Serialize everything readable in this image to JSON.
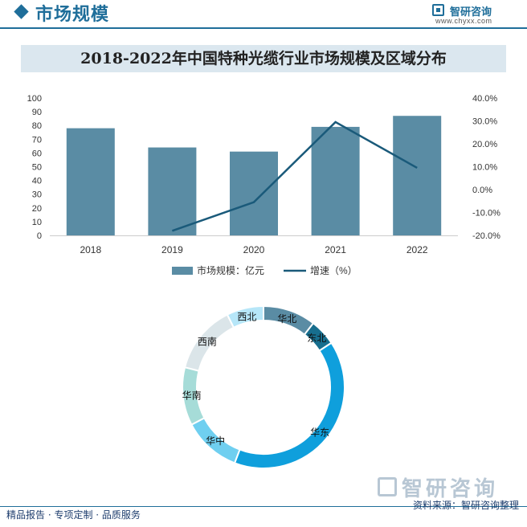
{
  "header": {
    "title": "市场规模",
    "brand_name": "智研咨询",
    "brand_url": "www.chyxx.com"
  },
  "colors": {
    "primary": "#1f6e9a",
    "bar": "#5a8ca4",
    "line": "#1a5a7a"
  },
  "chart_data": [
    {
      "type": "bar",
      "title": "2018-2022年中国特种光缆行业市场规模及区域分布",
      "categories": [
        "2018",
        "2019",
        "2020",
        "2021",
        "2022"
      ],
      "series": [
        {
          "name": "市场规模：亿元",
          "type": "bar",
          "axis": "left",
          "values": [
            78,
            64,
            61,
            79,
            87
          ]
        },
        {
          "name": "增速（%）",
          "type": "line",
          "axis": "right",
          "values": [
            null,
            -18,
            -5.5,
            29.5,
            9.5
          ]
        }
      ],
      "y_left": {
        "min": 0,
        "max": 100,
        "ticks": [
          "0",
          "10",
          "20",
          "30",
          "40",
          "50",
          "60",
          "70",
          "80",
          "90",
          "100"
        ]
      },
      "y_right": {
        "min": -20,
        "max": 40,
        "ticks": [
          "-20.0%",
          "-10.0%",
          "0.0%",
          "10.0%",
          "20.0%",
          "30.0%",
          "40.0%"
        ]
      },
      "legend": [
        "市场规模：亿元",
        "增速（%）"
      ]
    },
    {
      "type": "pie",
      "subtype": "donut",
      "slices": [
        {
          "label": "华北",
          "value": 10,
          "color": "#5a8ca4"
        },
        {
          "label": "东北",
          "value": 5,
          "color": "#176e8e"
        },
        {
          "label": "华东",
          "value": 38,
          "color": "#0f9fdc"
        },
        {
          "label": "华中",
          "value": 11,
          "color": "#6fcff0"
        },
        {
          "label": "华南",
          "value": 11,
          "color": "#a6dcd8"
        },
        {
          "label": "西南",
          "value": 13,
          "color": "#dbe5e9"
        },
        {
          "label": "西北",
          "value": 7,
          "color": "#b6e6f8"
        }
      ]
    }
  ],
  "footer": {
    "left": "精品报告 · 专项定制 · 品质服务",
    "right": "资料来源：智研咨询整理",
    "watermark": "智研咨询"
  }
}
